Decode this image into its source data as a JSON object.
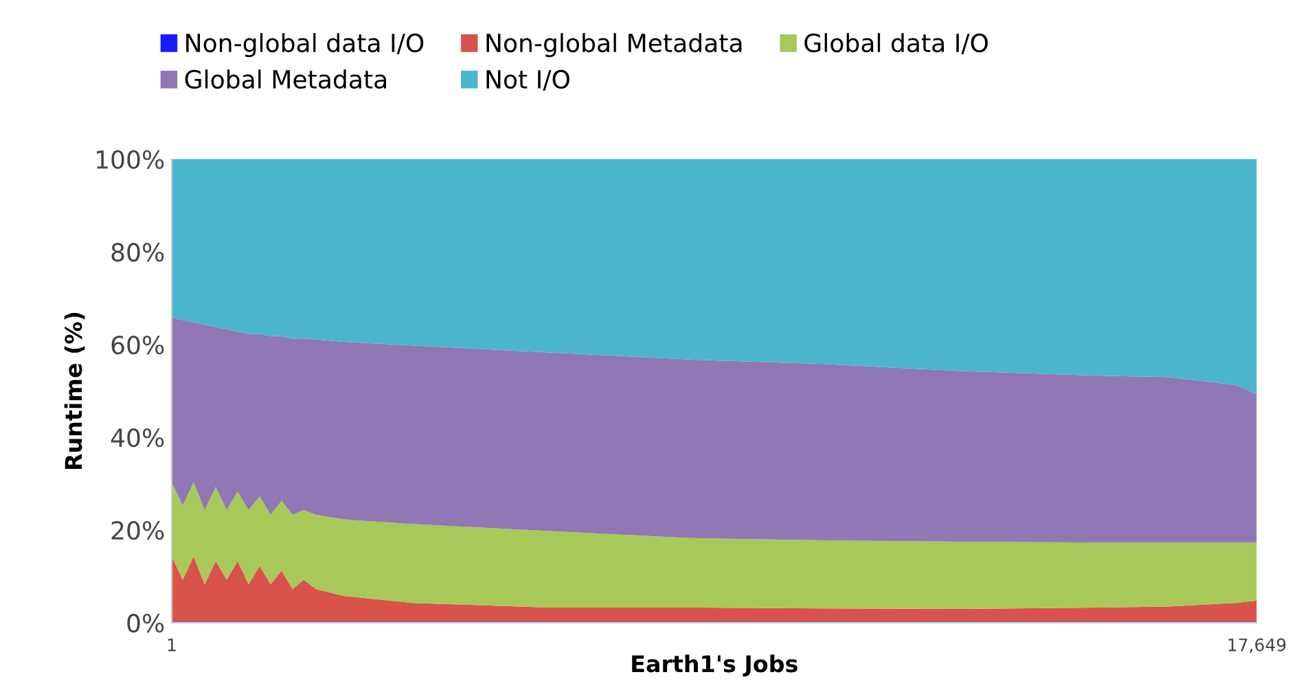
{
  "chart_data": {
    "type": "area",
    "stacked": true,
    "xlabel": "Earth1's Jobs",
    "ylabel": "Runtime (%)",
    "x": [
      1,
      180,
      358,
      537,
      716,
      895,
      1073,
      1252,
      1431,
      1610,
      1788,
      1967,
      2146,
      2347,
      2794,
      3911,
      6145,
      8379,
      10613,
      12847,
      15081,
      16198,
      17315,
      17649
    ],
    "xlim": [
      1,
      17649
    ],
    "xticks": [
      1,
      {
        "value": 17649,
        "label": "17,649"
      }
    ],
    "ylim": [
      0,
      100
    ],
    "yticks": [
      {
        "value": 0,
        "label": "0%"
      },
      {
        "value": 20,
        "label": "20%"
      },
      {
        "value": 40,
        "label": "40%"
      },
      {
        "value": 60,
        "label": "60%"
      },
      {
        "value": 80,
        "label": "80%"
      },
      {
        "value": 100,
        "label": "100%"
      }
    ],
    "grid": false,
    "legend": "top",
    "series": [
      {
        "name": "Non-global data I/O",
        "color": "#1a1aff",
        "values": [
          0.3,
          0.3,
          0.3,
          0.3,
          0.3,
          0.3,
          0.3,
          0.3,
          0.3,
          0.3,
          0.3,
          0.3,
          0.3,
          0.3,
          0.3,
          0.3,
          0.3,
          0.3,
          0.3,
          0.3,
          0.3,
          0.3,
          0.3,
          0.3
        ]
      },
      {
        "name": "Non-global Metadata",
        "color": "#d9534a",
        "values": [
          14,
          9,
          14,
          8,
          13,
          9,
          13,
          8,
          12,
          8,
          11,
          7,
          9,
          7,
          5.5,
          4,
          3,
          3,
          2.8,
          2.7,
          3,
          3.2,
          4,
          4.5
        ]
      },
      {
        "name": "Global data I/O",
        "color": "#a8c85a",
        "values": [
          16,
          16,
          16,
          16,
          16,
          15,
          15,
          16,
          15,
          15,
          15,
          16,
          15,
          16,
          16.5,
          17,
          16.5,
          15,
          14.7,
          14.5,
          14,
          13.8,
          13,
          12.5
        ]
      },
      {
        "name": "Global Metadata",
        "color": "#8f78b4",
        "values": [
          35.5,
          40,
          34.5,
          40,
          34.5,
          39,
          34.5,
          38,
          35,
          38.5,
          35.5,
          38,
          37,
          37.8,
          38.3,
          38.5,
          38.5,
          38.5,
          38,
          36.8,
          36,
          35.7,
          34,
          32
        ]
      },
      {
        "name": "Not I/O",
        "color": "#4bb5cc",
        "values": [
          34.5,
          35,
          35.5,
          36,
          36.5,
          37,
          37.5,
          38,
          38,
          38.5,
          38.5,
          39,
          39,
          39.2,
          39.7,
          40.5,
          42,
          43.5,
          44.5,
          46,
          47,
          47.3,
          49,
          51
        ]
      }
    ]
  }
}
